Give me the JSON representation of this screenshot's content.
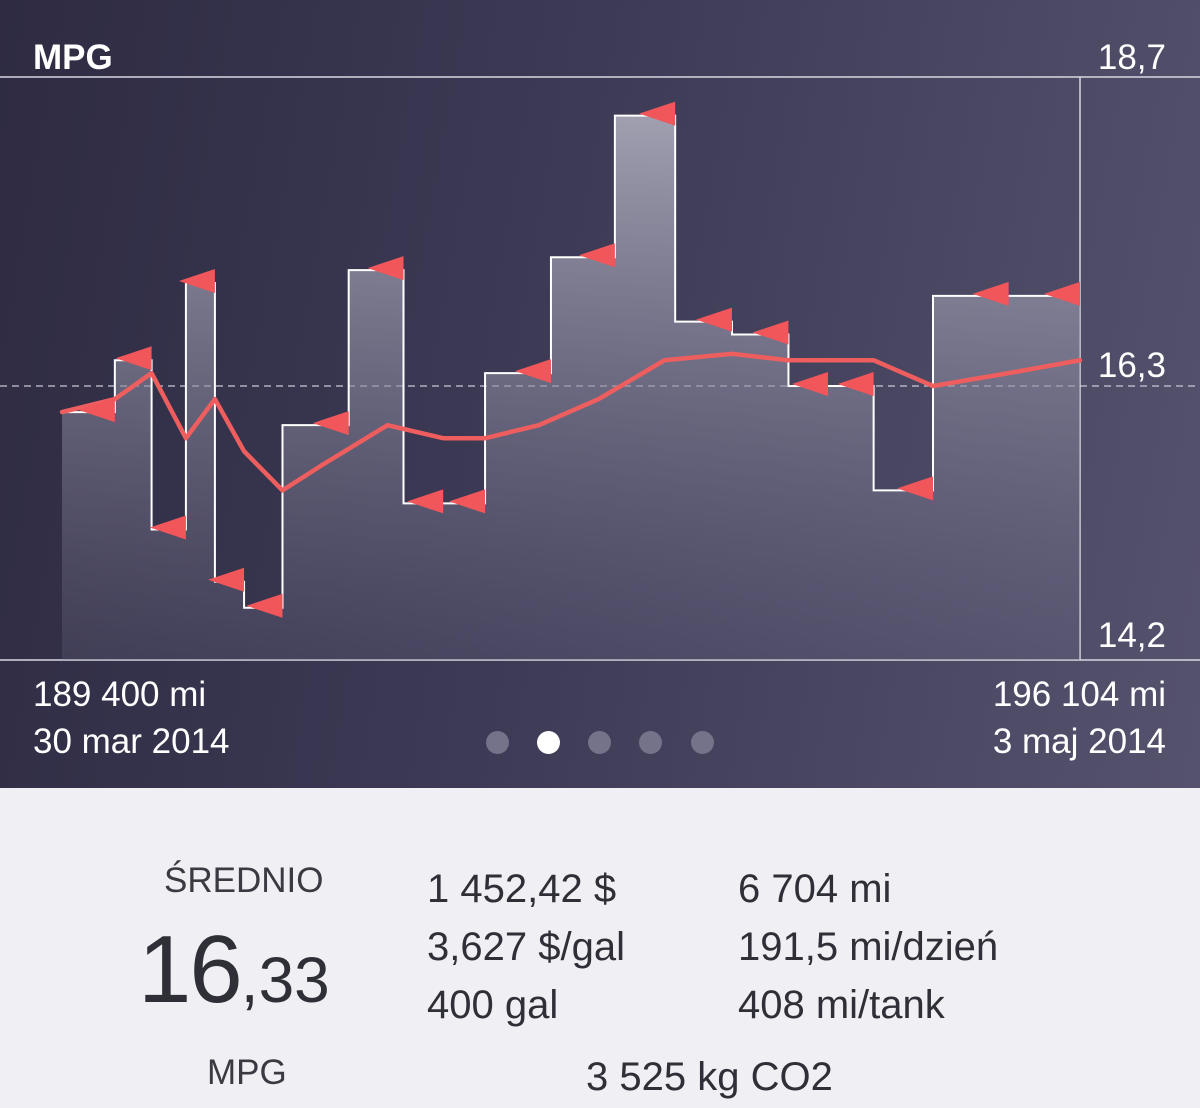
{
  "chart_data": {
    "type": "line",
    "title": "MPG",
    "ylim": [
      14.2,
      18.7
    ],
    "y_tick_labels": [
      "18,7",
      "16,3",
      "14,2"
    ],
    "x_start": {
      "odometer": "189 400 mi",
      "date": "30 mar 2014"
    },
    "x_end": {
      "odometer": "196 104 mi",
      "date": "3 maj 2014"
    },
    "average_line": 16.33,
    "x_unit": "mi",
    "series": [
      {
        "points": [
          [
            189400,
            16.1
          ],
          [
            189748,
            16.5
          ],
          [
            189990,
            15.2
          ],
          [
            190216,
            17.1
          ],
          [
            190407,
            14.8
          ],
          [
            190599,
            14.6
          ],
          [
            190852,
            16.0
          ],
          [
            191288,
            17.2
          ],
          [
            191649,
            15.4
          ],
          [
            191910,
            15.4
          ],
          [
            192186,
            16.4
          ],
          [
            192620,
            17.3
          ],
          [
            193041,
            18.4
          ],
          [
            193438,
            16.8
          ],
          [
            193812,
            16.7
          ],
          [
            194184,
            16.3
          ],
          [
            194444,
            16.3
          ],
          [
            194745,
            15.5
          ],
          [
            195136,
            17.0
          ],
          [
            195634,
            17.0
          ],
          [
            196104,
            17.0
          ]
        ]
      },
      {
        "points": [
          [
            189400,
            16.1
          ],
          [
            189748,
            16.2
          ],
          [
            189990,
            16.4
          ],
          [
            190216,
            15.9
          ],
          [
            190407,
            16.2
          ],
          [
            190599,
            15.8
          ],
          [
            190852,
            15.5
          ],
          [
            191121,
            15.7
          ],
          [
            191544,
            16.0
          ],
          [
            191910,
            15.9
          ],
          [
            192186,
            15.9
          ],
          [
            192540,
            16.0
          ],
          [
            192934,
            16.2
          ],
          [
            193368,
            16.5
          ],
          [
            193812,
            16.55
          ],
          [
            194184,
            16.5
          ],
          [
            194745,
            16.5
          ],
          [
            195136,
            16.3
          ],
          [
            195634,
            16.4
          ],
          [
            196104,
            16.5
          ]
        ]
      }
    ]
  },
  "pager": {
    "count": 5,
    "active_index": 1
  },
  "stats": {
    "avg_label": "ŚREDNIO",
    "avg_whole": "16",
    "avg_fraction": ",33",
    "avg_unit": "MPG",
    "total_cost": "1 452,42 $",
    "price_per_gal": "3,627 $/gal",
    "total_volume": "400 gal",
    "distance": "6 704 mi",
    "daily_distance": "191,5 mi/dzień",
    "per_tank": "408 mi/tank",
    "co2": "3 525 kg CO2"
  },
  "colors": {
    "panel_bg": "#3a374f",
    "line": "#ee5e5e",
    "marker": "#f0565a",
    "stats_bg": "#f0eff4"
  }
}
